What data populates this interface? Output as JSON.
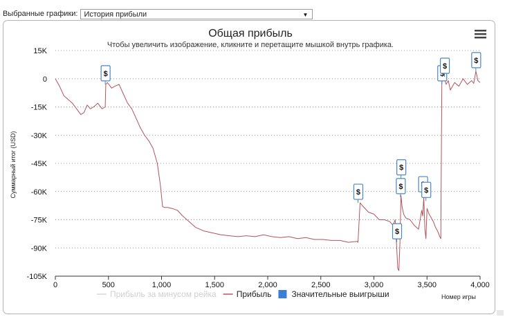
{
  "toolbar": {
    "label": "Выбранные графики:",
    "selected": "История прибыли"
  },
  "chart_data": {
    "type": "line",
    "title": "Общая прибыль",
    "subtitle": "Чтобы увеличить изображение, кликните и перетащите мышкой внутрь графика.",
    "ylabel": "Суммарный итог (USD)",
    "xlabel": "Номер игры",
    "xlim": [
      0,
      4000
    ],
    "ylim": [
      -105000,
      15000
    ],
    "ytick_labels": [
      "15K",
      "0",
      "-15K",
      "-30K",
      "-45K",
      "-60K",
      "-75K",
      "-90K",
      "-105K"
    ],
    "ytick_values": [
      15000,
      0,
      -15000,
      -30000,
      -45000,
      -60000,
      -75000,
      -90000,
      -105000
    ],
    "xtick_labels": [
      "0",
      "500",
      "1,000",
      "1,500",
      "2,000",
      "2,500",
      "3,000",
      "3,500",
      "4,000"
    ],
    "xtick_values": [
      0,
      500,
      1000,
      1500,
      2000,
      2500,
      3000,
      3500,
      4000
    ],
    "grid": "horizontal dotted",
    "legend_position": "bottom",
    "legend": [
      {
        "name": "Прибыль за минусом рейка",
        "color": "#d8d8d8",
        "hidden": true
      },
      {
        "name": "Прибыль",
        "color": "#b5525a"
      },
      {
        "name": "Значительные выигрыши",
        "color": "#3a7fd5"
      }
    ],
    "series": [
      {
        "name": "Прибыль",
        "color": "#b5525a",
        "x": [
          0,
          40,
          80,
          120,
          160,
          200,
          240,
          270,
          300,
          330,
          360,
          400,
          440,
          470,
          475,
          490,
          530,
          560,
          600,
          640,
          680,
          720,
          760,
          800,
          840,
          880,
          920,
          960,
          990,
          1010,
          1030,
          1060,
          1100,
          1150,
          1200,
          1260,
          1320,
          1400,
          1480,
          1560,
          1640,
          1720,
          1800,
          1880,
          1960,
          2040,
          2120,
          2200,
          2280,
          2360,
          2440,
          2520,
          2600,
          2680,
          2760,
          2840,
          2850,
          2870,
          2900,
          2950,
          3000,
          3050,
          3100,
          3150,
          3180,
          3200,
          3215,
          3225,
          3235,
          3245,
          3255,
          3265,
          3280,
          3300,
          3340,
          3380,
          3420,
          3450,
          3460,
          3470,
          3480,
          3490,
          3500,
          3520,
          3540,
          3560,
          3580,
          3600,
          3620,
          3630,
          3640,
          3650,
          3660,
          3680,
          3700,
          3720,
          3760,
          3800,
          3840,
          3880,
          3920,
          3940,
          3960,
          3980,
          4000
        ],
        "values": [
          0,
          -4000,
          -9000,
          -11000,
          -13000,
          -16000,
          -19000,
          -18000,
          -14000,
          -16000,
          -15000,
          -13000,
          -16000,
          -15000,
          -3000,
          -2000,
          -5000,
          -4000,
          -3000,
          -8000,
          -13000,
          -16000,
          -21000,
          -26000,
          -30000,
          -33000,
          -37000,
          -45000,
          -57000,
          -68000,
          -68500,
          -68500,
          -69000,
          -70000,
          -73000,
          -76000,
          -79000,
          -81000,
          -82000,
          -83000,
          -83500,
          -84000,
          -83500,
          -84000,
          -83000,
          -84000,
          -84500,
          -84000,
          -85000,
          -84500,
          -85500,
          -85500,
          -86000,
          -86000,
          -87000,
          -86500,
          -87000,
          -66000,
          -68000,
          -71000,
          -72000,
          -75000,
          -75000,
          -76000,
          -78000,
          -75000,
          -90000,
          -101000,
          -102000,
          -88000,
          -62000,
          -68000,
          -72000,
          -74000,
          -75000,
          -78000,
          -80000,
          -70000,
          -73000,
          -63000,
          -80000,
          -85000,
          -69000,
          -72000,
          -74000,
          -76000,
          -79000,
          -81000,
          -84000,
          -85000,
          -2000,
          0,
          1000,
          -3000,
          -1000,
          -6000,
          -2000,
          -4000,
          0,
          -3000,
          -1000,
          -2500,
          4000,
          -1000,
          -2000
        ]
      }
    ],
    "big_wins": [
      {
        "x": 470,
        "y": -3000
      },
      {
        "x": 2850,
        "y": -66000
      },
      {
        "x": 3215,
        "y": -87000
      },
      {
        "x": 3250,
        "y": -63000
      },
      {
        "x": 3255,
        "y": -53000
      },
      {
        "x": 3460,
        "y": -62000
      },
      {
        "x": 3490,
        "y": -65000
      },
      {
        "x": 3640,
        "y": -3000
      },
      {
        "x": 3665,
        "y": 1000
      },
      {
        "x": 3960,
        "y": 4000
      }
    ],
    "big_win_symbol": "$"
  }
}
